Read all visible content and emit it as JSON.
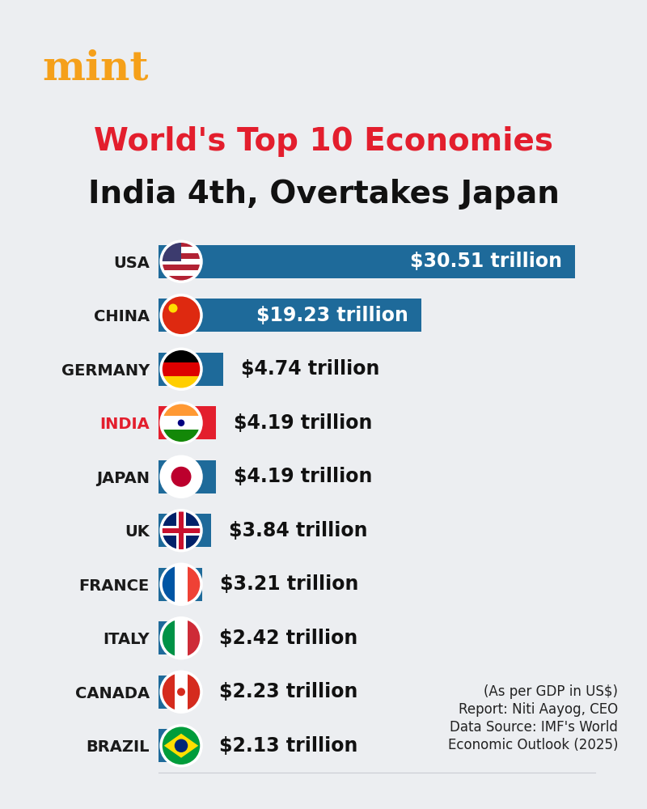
{
  "chart_data": {
    "type": "bar",
    "orientation": "horizontal",
    "brand": "mint",
    "title": "World's Top 10 Economies",
    "subtitle": "India 4th, Overtakes Japan",
    "categories": [
      "USA",
      "CHINA",
      "GERMANY",
      "INDIA",
      "JAPAN",
      "UK",
      "FRANCE",
      "ITALY",
      "CANADA",
      "BRAZIL"
    ],
    "values": [
      30.51,
      19.23,
      4.74,
      4.19,
      4.19,
      3.84,
      3.21,
      2.42,
      2.23,
      2.13
    ],
    "value_labels": [
      "$30.51 trillion",
      "$19.23 trillion",
      "$4.74 trillion",
      "$4.19 trillion",
      "$4.19 trillion",
      "$3.84 trillion",
      "$3.21 trillion",
      "$2.42 trillion",
      "$2.23 trillion",
      "$2.13 trillion"
    ],
    "colors": [
      "#1e6a9a",
      "#1e6a9a",
      "#1e6a9a",
      "#e31e2d",
      "#1e6a9a",
      "#1e6a9a",
      "#1e6a9a",
      "#1e6a9a",
      "#1e6a9a",
      "#1e6a9a"
    ],
    "xlim": [
      0,
      32
    ],
    "tick_labels": "y",
    "data_labels": true,
    "grid": false,
    "annotations": [
      "(As per GDP in US$)",
      "Report: Niti Aayog, CEO",
      "Data Source: IMF's World",
      "Economic Outlook (2025)"
    ]
  }
}
